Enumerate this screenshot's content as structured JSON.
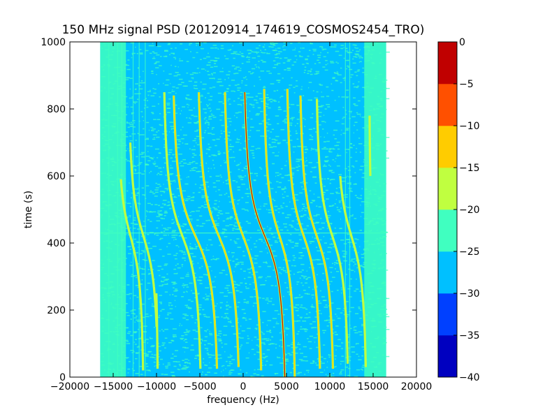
{
  "chart_data": {
    "type": "heatmap",
    "title": "150 MHz signal PSD (20120914_174619_COSMOS2454_TRO)",
    "xlabel": "frequency (Hz)",
    "ylabel": "time (s)",
    "xlim": [
      -20000,
      20000
    ],
    "ylim": [
      0,
      1000
    ],
    "xticks": [
      -20000,
      -15000,
      -10000,
      -5000,
      0,
      5000,
      10000,
      15000,
      20000
    ],
    "xtick_labels": [
      "−20000",
      "−15000",
      "−10000",
      "−5000",
      "0",
      "5000",
      "10000",
      "15000",
      "20000"
    ],
    "yticks": [
      0,
      200,
      400,
      600,
      800,
      1000
    ],
    "ytick_labels": [
      "0",
      "200",
      "400",
      "600",
      "800",
      "1000"
    ],
    "data_extent": {
      "freq": [
        -16500,
        16500
      ],
      "time": [
        0,
        1000
      ]
    },
    "colorbar": {
      "levels": [
        -40,
        -35,
        -30,
        -25,
        -20,
        -15,
        -10,
        -5,
        0
      ],
      "tick_labels": [
        "−40",
        "−35",
        "−30",
        "−25",
        "−20",
        "−15",
        "−10",
        "−5",
        "0"
      ],
      "colors": [
        "#0000c0",
        "#0040ff",
        "#00c0ff",
        "#40ffc0",
        "#c0ff40",
        "#ffcc00",
        "#ff5000",
        "#c00000"
      ]
    },
    "background_level": -27.5,
    "band_edge_level": -22.5,
    "signal_traces": [
      {
        "f_center": -13000,
        "span": 3500,
        "t_start": 20,
        "t_end": 590,
        "peak_level": -17
      },
      {
        "f_center": -11500,
        "span": 4000,
        "t_start": 150,
        "t_end": 700,
        "peak_level": -17
      },
      {
        "f_center": -10500,
        "span": 1500,
        "t_start": 25,
        "t_end": 250,
        "peak_level": -17
      },
      {
        "f_center": -7000,
        "span": 5000,
        "t_start": 25,
        "t_end": 850,
        "peak_level": -17
      },
      {
        "f_center": -5500,
        "span": 6000,
        "t_start": 25,
        "t_end": 840,
        "peak_level": -12
      },
      {
        "f_center": -2800,
        "span": 5500,
        "t_start": 30,
        "t_end": 850,
        "peak_level": -12
      },
      {
        "f_center": 0,
        "span": 5000,
        "t_start": 20,
        "t_end": 850,
        "peak_level": -12
      },
      {
        "f_center": 2500,
        "span": 5500,
        "t_start": 0,
        "t_end": 850,
        "peak_level": -2
      },
      {
        "f_center": 4200,
        "span": 4200,
        "t_start": 0,
        "t_end": 860,
        "peak_level": -12
      },
      {
        "f_center": 7000,
        "span": 4500,
        "t_start": 25,
        "t_end": 860,
        "peak_level": -12
      },
      {
        "f_center": 8500,
        "span": 4500,
        "t_start": 25,
        "t_end": 840,
        "peak_level": -12
      },
      {
        "f_center": 10300,
        "span": 4300,
        "t_start": 40,
        "t_end": 830,
        "peak_level": -17
      },
      {
        "f_center": 12500,
        "span": 4000,
        "t_start": 30,
        "t_end": 600,
        "peak_level": -17
      },
      {
        "f_center": 15000,
        "span": 1000,
        "t_start": 600,
        "t_end": 780,
        "peak_level": -17
      }
    ],
    "horizontal_line": {
      "time": 430,
      "level": -22.5
    },
    "vertical_lines_freq": [
      -15500,
      -14500,
      -14000,
      -12700,
      -12000,
      -11300,
      11800,
      12300
    ]
  }
}
